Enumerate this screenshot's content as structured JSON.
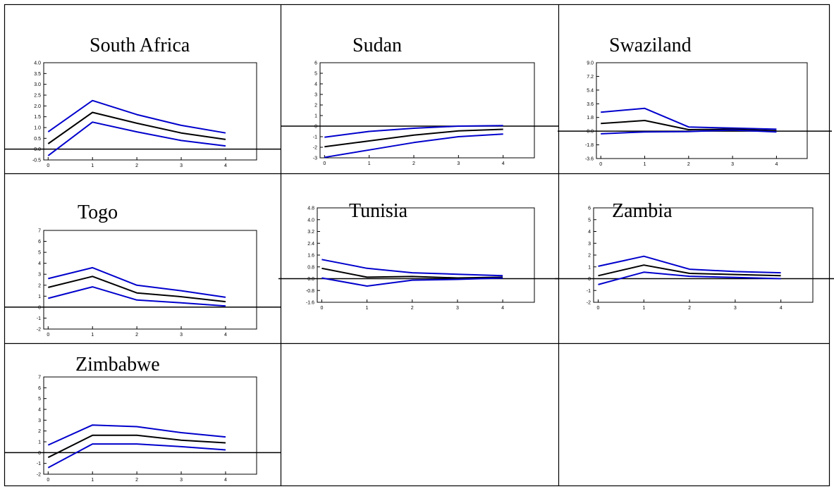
{
  "chart_data": [
    {
      "type": "line",
      "title": "South Africa",
      "x": [
        0,
        1,
        2,
        3,
        4
      ],
      "ylim": [
        -0.5,
        4.0
      ],
      "yticks": [
        "4.0",
        "3.5",
        "3.0",
        "2.5",
        "2.0",
        "1.5",
        "1.0",
        "0.5",
        "0.0",
        "-0.5"
      ],
      "xticks": [
        "0",
        "1",
        "2",
        "3",
        "4"
      ],
      "series": [
        {
          "values": [
            0.8,
            2.25,
            1.6,
            1.1,
            0.75
          ],
          "color": "#0000cc"
        },
        {
          "values": [
            0.25,
            1.7,
            1.2,
            0.75,
            0.45
          ],
          "color": "#000000"
        },
        {
          "values": [
            -0.3,
            1.25,
            0.8,
            0.4,
            0.15
          ],
          "color": "#0000cc"
        }
      ]
    },
    {
      "type": "line",
      "title": "Sudan",
      "x": [
        0,
        1,
        2,
        3,
        4
      ],
      "ylim": [
        -3,
        6
      ],
      "yticks": [
        "6",
        "5",
        "4",
        "3",
        "2",
        "1",
        "0",
        "-1",
        "-2",
        "-3"
      ],
      "xticks": [
        "0",
        "1",
        "2",
        "3",
        "4"
      ],
      "series": [
        {
          "values": [
            -1.05,
            -0.5,
            -0.2,
            0.0,
            0.05
          ],
          "color": "#0000cc"
        },
        {
          "values": [
            -1.95,
            -1.4,
            -0.85,
            -0.45,
            -0.3
          ],
          "color": "#000000"
        },
        {
          "values": [
            -2.95,
            -2.25,
            -1.55,
            -1.0,
            -0.75
          ],
          "color": "#0000cc"
        }
      ]
    },
    {
      "type": "line",
      "title": "Swaziland",
      "x": [
        0,
        1,
        2,
        3,
        4
      ],
      "ylim": [
        -3.6,
        9.0
      ],
      "yticks": [
        "9.0",
        "7.2",
        "5.4",
        "3.6",
        "1.8",
        "0.0",
        "-1.8",
        "-3.6"
      ],
      "xticks": [
        "0",
        "1",
        "2",
        "3",
        "4"
      ],
      "series": [
        {
          "values": [
            2.5,
            3.0,
            0.55,
            0.4,
            0.25
          ],
          "color": "#0000cc"
        },
        {
          "values": [
            1.0,
            1.4,
            0.2,
            0.25,
            0.05
          ],
          "color": "#000000"
        },
        {
          "values": [
            -0.35,
            -0.1,
            -0.05,
            0.15,
            -0.1
          ],
          "color": "#0000cc"
        }
      ]
    },
    {
      "type": "line",
      "title": "Togo",
      "x": [
        0,
        1,
        2,
        3,
        4
      ],
      "ylim": [
        -2,
        7
      ],
      "yticks": [
        "7",
        "6",
        "5",
        "4",
        "3",
        "2",
        "1",
        "0",
        "-1",
        "-2"
      ],
      "xticks": [
        "0",
        "1",
        "2",
        "3",
        "4"
      ],
      "series": [
        {
          "values": [
            2.6,
            3.6,
            2.0,
            1.5,
            0.9
          ],
          "color": "#0000cc"
        },
        {
          "values": [
            1.8,
            2.8,
            1.3,
            0.95,
            0.5
          ],
          "color": "#000000"
        },
        {
          "values": [
            0.8,
            1.85,
            0.65,
            0.4,
            0.1
          ],
          "color": "#0000cc"
        }
      ]
    },
    {
      "type": "line",
      "title": "Tunisia",
      "x": [
        0,
        1,
        2,
        3,
        4
      ],
      "ylim": [
        -1.6,
        4.8
      ],
      "yticks": [
        "4.8",
        "4.0",
        "3.2",
        "2.4",
        "1.6",
        "0.8",
        "0.0",
        "-0.8",
        "-1.6"
      ],
      "xticks": [
        "0",
        "1",
        "2",
        "3",
        "4"
      ],
      "series": [
        {
          "values": [
            1.3,
            0.7,
            0.4,
            0.3,
            0.2
          ],
          "color": "#0000cc"
        },
        {
          "values": [
            0.7,
            0.1,
            0.15,
            0.05,
            0.1
          ],
          "color": "#000000"
        },
        {
          "values": [
            0.05,
            -0.5,
            -0.1,
            -0.05,
            0.05
          ],
          "color": "#0000cc"
        }
      ]
    },
    {
      "type": "line",
      "title": "Zambia",
      "x": [
        0,
        1,
        2,
        3,
        4
      ],
      "ylim": [
        -2,
        6
      ],
      "yticks": [
        "6",
        "5",
        "4",
        "3",
        "2",
        "1",
        "0",
        "-1",
        "-2"
      ],
      "xticks": [
        "0",
        "1",
        "2",
        "3",
        "4"
      ],
      "series": [
        {
          "values": [
            1.05,
            1.9,
            0.8,
            0.6,
            0.5
          ],
          "color": "#0000cc"
        },
        {
          "values": [
            0.25,
            1.15,
            0.45,
            0.35,
            0.25
          ],
          "color": "#000000"
        },
        {
          "values": [
            -0.5,
            0.55,
            0.2,
            0.1,
            0.0
          ],
          "color": "#0000cc"
        }
      ]
    },
    {
      "type": "line",
      "title": "Zimbabwe",
      "x": [
        0,
        1,
        2,
        3,
        4
      ],
      "ylim": [
        -2,
        7
      ],
      "yticks": [
        "7",
        "6",
        "5",
        "4",
        "3",
        "2",
        "1",
        "0",
        "-1",
        "-2"
      ],
      "xticks": [
        "0",
        "1",
        "2",
        "3",
        "4"
      ],
      "series": [
        {
          "values": [
            0.7,
            2.55,
            2.4,
            1.85,
            1.45
          ],
          "color": "#0000cc"
        },
        {
          "values": [
            -0.45,
            1.6,
            1.6,
            1.15,
            0.9
          ],
          "color": "#000000"
        },
        {
          "values": [
            -1.4,
            0.8,
            0.8,
            0.55,
            0.25
          ],
          "color": "#0000cc"
        }
      ]
    }
  ]
}
